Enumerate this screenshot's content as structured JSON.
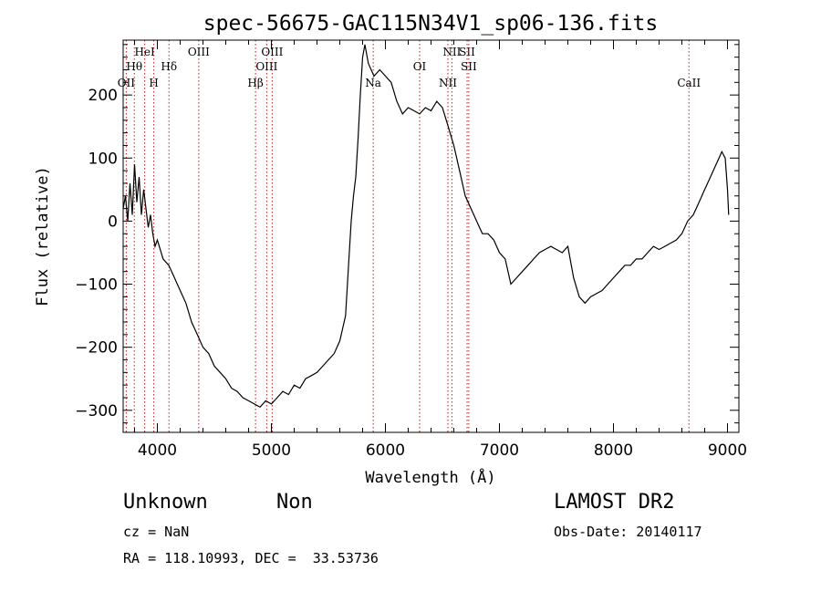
{
  "chart_data": {
    "type": "line",
    "title": "spec-56675-GAC115N34V1_sp06-136.fits",
    "xlabel": "Wavelength (Å)",
    "ylabel": "Flux (relative)",
    "xlim": [
      3700,
      9100
    ],
    "ylim": [
      -335,
      287
    ],
    "xticks": [
      4000,
      5000,
      6000,
      7000,
      8000,
      9000
    ],
    "yticks": [
      -300,
      -200,
      -100,
      0,
      100,
      200
    ],
    "spectrum": {
      "x": [
        3700,
        3720,
        3740,
        3760,
        3780,
        3800,
        3820,
        3840,
        3860,
        3880,
        3900,
        3920,
        3940,
        3960,
        3980,
        4000,
        4050,
        4100,
        4150,
        4200,
        4250,
        4300,
        4350,
        4400,
        4450,
        4500,
        4550,
        4600,
        4650,
        4700,
        4750,
        4800,
        4850,
        4900,
        4950,
        5000,
        5050,
        5100,
        5150,
        5200,
        5250,
        5300,
        5350,
        5400,
        5450,
        5500,
        5550,
        5600,
        5650,
        5680,
        5700,
        5720,
        5740,
        5760,
        5780,
        5800,
        5820,
        5850,
        5900,
        5950,
        6000,
        6050,
        6100,
        6150,
        6200,
        6250,
        6300,
        6350,
        6400,
        6450,
        6500,
        6550,
        6600,
        6650,
        6700,
        6750,
        6800,
        6850,
        6900,
        6950,
        7000,
        7050,
        7100,
        7150,
        7200,
        7250,
        7300,
        7350,
        7400,
        7450,
        7500,
        7550,
        7600,
        7650,
        7700,
        7750,
        7800,
        7850,
        7900,
        7950,
        8000,
        8050,
        8100,
        8150,
        8200,
        8250,
        8300,
        8350,
        8400,
        8450,
        8500,
        8550,
        8600,
        8650,
        8700,
        8750,
        8800,
        8850,
        8900,
        8950,
        8980,
        9000,
        9010
      ],
      "y": [
        20,
        40,
        0,
        60,
        10,
        90,
        30,
        70,
        10,
        50,
        20,
        -10,
        10,
        -20,
        -40,
        -30,
        -60,
        -70,
        -90,
        -110,
        -130,
        -160,
        -180,
        -200,
        -210,
        -230,
        -240,
        -250,
        -265,
        -270,
        -280,
        -285,
        -290,
        -295,
        -285,
        -290,
        -280,
        -270,
        -275,
        -260,
        -265,
        -250,
        -245,
        -240,
        -230,
        -220,
        -210,
        -190,
        -150,
        -60,
        0,
        40,
        70,
        130,
        200,
        260,
        280,
        250,
        230,
        240,
        230,
        220,
        190,
        170,
        180,
        175,
        170,
        180,
        175,
        190,
        180,
        150,
        120,
        80,
        40,
        20,
        0,
        -20,
        -20,
        -30,
        -50,
        -60,
        -100,
        -90,
        -80,
        -70,
        -60,
        -50,
        -45,
        -40,
        -45,
        -50,
        -40,
        -90,
        -120,
        -130,
        -120,
        -115,
        -110,
        -100,
        -90,
        -80,
        -70,
        -70,
        -60,
        -60,
        -50,
        -40,
        -45,
        -40,
        -35,
        -30,
        -20,
        0,
        10,
        30,
        50,
        70,
        90,
        110,
        100,
        50,
        10
      ]
    },
    "line_markers": [
      {
        "name": "OII",
        "wavelength": 3727,
        "row": 3
      },
      {
        "name": "Hθ",
        "wavelength": 3798,
        "row": 2
      },
      {
        "name": "HeI",
        "wavelength": 3889,
        "row": 1
      },
      {
        "name": "H",
        "wavelength": 3969,
        "row": 3
      },
      {
        "name": "Hδ",
        "wavelength": 4102,
        "row": 2
      },
      {
        "name": "OIII",
        "wavelength": 4363,
        "row": 1
      },
      {
        "name": "Hβ",
        "wavelength": 4861,
        "row": 3
      },
      {
        "name": "OIII",
        "wavelength": 4959,
        "row": 2
      },
      {
        "name": "OIII",
        "wavelength": 5007,
        "row": 1
      },
      {
        "name": "Na",
        "wavelength": 5893,
        "row": 3
      },
      {
        "name": "OI",
        "wavelength": 6300,
        "row": 2
      },
      {
        "name": "NII",
        "wavelength": 6548,
        "row": 3
      },
      {
        "name": "NII",
        "wavelength": 6583,
        "row": 1
      },
      {
        "name": "SII",
        "wavelength": 6716,
        "row": 1
      },
      {
        "name": "SII",
        "wavelength": 6731,
        "row": 2
      },
      {
        "name": "CaII",
        "wavelength": 8662,
        "row": 3
      }
    ]
  },
  "footer": {
    "class_name": "Unknown",
    "subclass": "Non",
    "survey": "LAMOST DR2",
    "cz": "cz = NaN",
    "obs_date": "Obs-Date: 20140117",
    "coords": "RA = 118.10993, DEC =  33.53736"
  }
}
